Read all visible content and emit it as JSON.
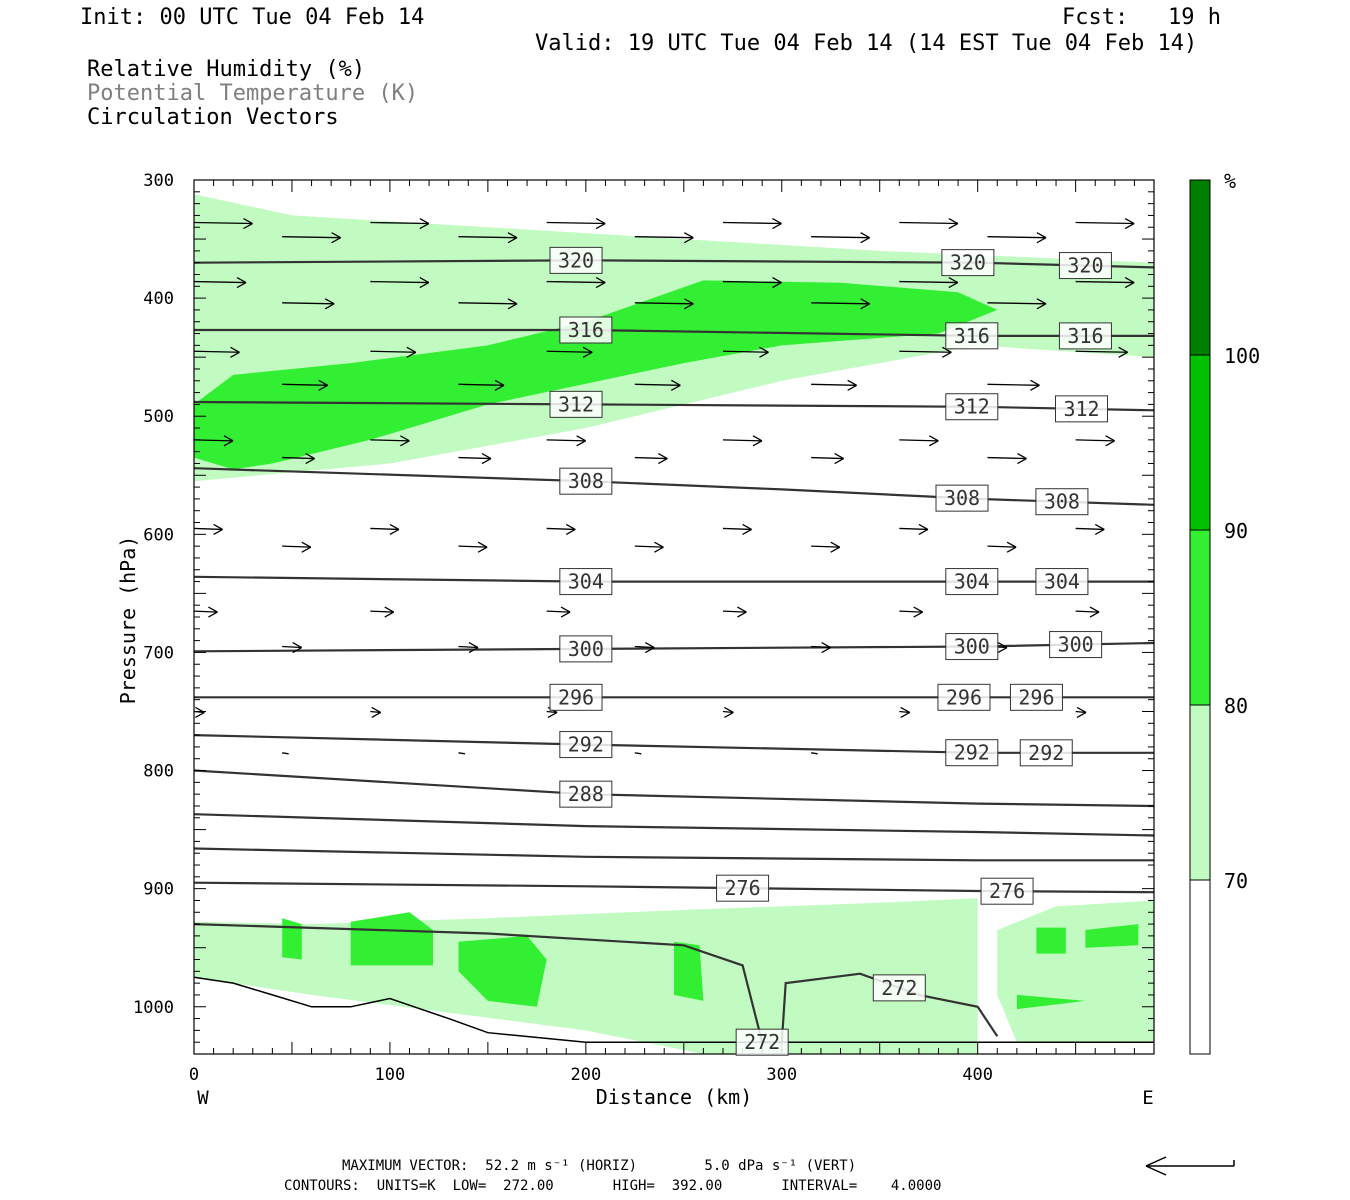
{
  "header": {
    "init": "Init: 00 UTC Tue 04 Feb 14",
    "fcst": "Fcst:   19 h",
    "valid": "Valid: 19 UTC Tue 04 Feb 14 (14 EST Tue 04 Feb 14)",
    "fields": [
      "Relative Humidity (%)",
      "Potential Temperature (K)",
      "Circulation Vectors"
    ]
  },
  "colors": {
    "rh_70_80": "#c1fbc1",
    "rh_80_90": "#33ef33",
    "rh_90_100": "#00c000",
    "rh_100": "#007f00",
    "theta_line": "#333333",
    "theta_title": "#7f7f7f"
  },
  "chart_data": {
    "type": "cross-section",
    "xlabel": "Distance (km)",
    "ylabel": "Pressure (hPa)",
    "xlim": [
      0,
      490
    ],
    "ylim": [
      1040,
      300
    ],
    "x_ticks": [
      "0",
      "100",
      "200",
      "300",
      "400"
    ],
    "y_ticks": [
      "300",
      "400",
      "500",
      "600",
      "700",
      "800",
      "900",
      "1000"
    ],
    "x_end_labels": {
      "left": "W",
      "right": "E"
    },
    "colorbar": {
      "unit": "%",
      "levels": [
        "70",
        "80",
        "90",
        "100"
      ]
    },
    "theta_contours": [
      {
        "label": "320",
        "p": [
          [
            0,
            370
          ],
          [
            200,
            368
          ],
          [
            400,
            370
          ],
          [
            490,
            374
          ]
        ],
        "labels_at": [
          195,
          395,
          455
        ]
      },
      {
        "label": "316",
        "p": [
          [
            0,
            427
          ],
          [
            200,
            427
          ],
          [
            400,
            432
          ],
          [
            490,
            432
          ]
        ],
        "labels_at": [
          200,
          397,
          455
        ]
      },
      {
        "label": "312",
        "p": [
          [
            0,
            488
          ],
          [
            200,
            490
          ],
          [
            400,
            492
          ],
          [
            490,
            495
          ]
        ],
        "labels_at": [
          195,
          397,
          453
        ]
      },
      {
        "label": "308",
        "p": [
          [
            0,
            544
          ],
          [
            200,
            555
          ],
          [
            300,
            562
          ],
          [
            400,
            570
          ],
          [
            490,
            575
          ]
        ],
        "labels_at": [
          200,
          392,
          443
        ]
      },
      {
        "label": "304",
        "p": [
          [
            0,
            636
          ],
          [
            200,
            640
          ],
          [
            400,
            640
          ],
          [
            490,
            640
          ]
        ],
        "labels_at": [
          200,
          397,
          443
        ]
      },
      {
        "label": "300",
        "p": [
          [
            0,
            699
          ],
          [
            200,
            697
          ],
          [
            400,
            695
          ],
          [
            490,
            692
          ]
        ],
        "labels_at": [
          200,
          397,
          450
        ]
      },
      {
        "label": "296",
        "p": [
          [
            0,
            738
          ],
          [
            200,
            738
          ],
          [
            400,
            738
          ],
          [
            490,
            738
          ]
        ],
        "labels_at": [
          195,
          393,
          430
        ]
      },
      {
        "label": "292",
        "p": [
          [
            0,
            770
          ],
          [
            200,
            778
          ],
          [
            400,
            785
          ],
          [
            490,
            785
          ]
        ],
        "labels_at": [
          200,
          397,
          435
        ]
      },
      {
        "label": "288",
        "p": [
          [
            0,
            800
          ],
          [
            200,
            820
          ],
          [
            400,
            828
          ],
          [
            490,
            830
          ]
        ],
        "labels_at": [
          200
        ]
      },
      {
        "label": "",
        "p": [
          [
            0,
            837
          ],
          [
            200,
            847
          ],
          [
            400,
            852
          ],
          [
            490,
            855
          ]
        ],
        "labels_at": []
      },
      {
        "label": "",
        "p": [
          [
            0,
            866
          ],
          [
            200,
            873
          ],
          [
            400,
            876
          ],
          [
            490,
            876
          ]
        ],
        "labels_at": [],
        "hide_labels": true
      },
      {
        "label": "276",
        "p": [
          [
            0,
            895
          ],
          [
            200,
            898
          ],
          [
            300,
            900
          ],
          [
            400,
            902
          ],
          [
            490,
            903
          ]
        ],
        "labels_at": [
          280,
          415
        ]
      },
      {
        "label": "272",
        "p": [
          [
            0,
            930
          ],
          [
            150,
            938
          ],
          [
            250,
            948
          ],
          [
            280,
            965
          ],
          [
            290,
            1030
          ],
          [
            300,
            1030
          ],
          [
            302,
            980
          ],
          [
            340,
            972
          ],
          [
            370,
            990
          ],
          [
            400,
            1000
          ],
          [
            410,
            1025
          ]
        ],
        "labels_at": [
          290,
          360
        ]
      }
    ],
    "rh_levels": [
      "70",
      "80",
      "90",
      "100"
    ]
  },
  "footer": {
    "line1": "MAXIMUM VECTOR:  52.2 m s⁻¹ (HORIZ)        5.0 dPa s⁻¹ (VERT)",
    "line2": "CONTOURS:  UNITS=K  LOW=  272.00       HIGH=  392.00       INTERVAL=    4.0000"
  }
}
